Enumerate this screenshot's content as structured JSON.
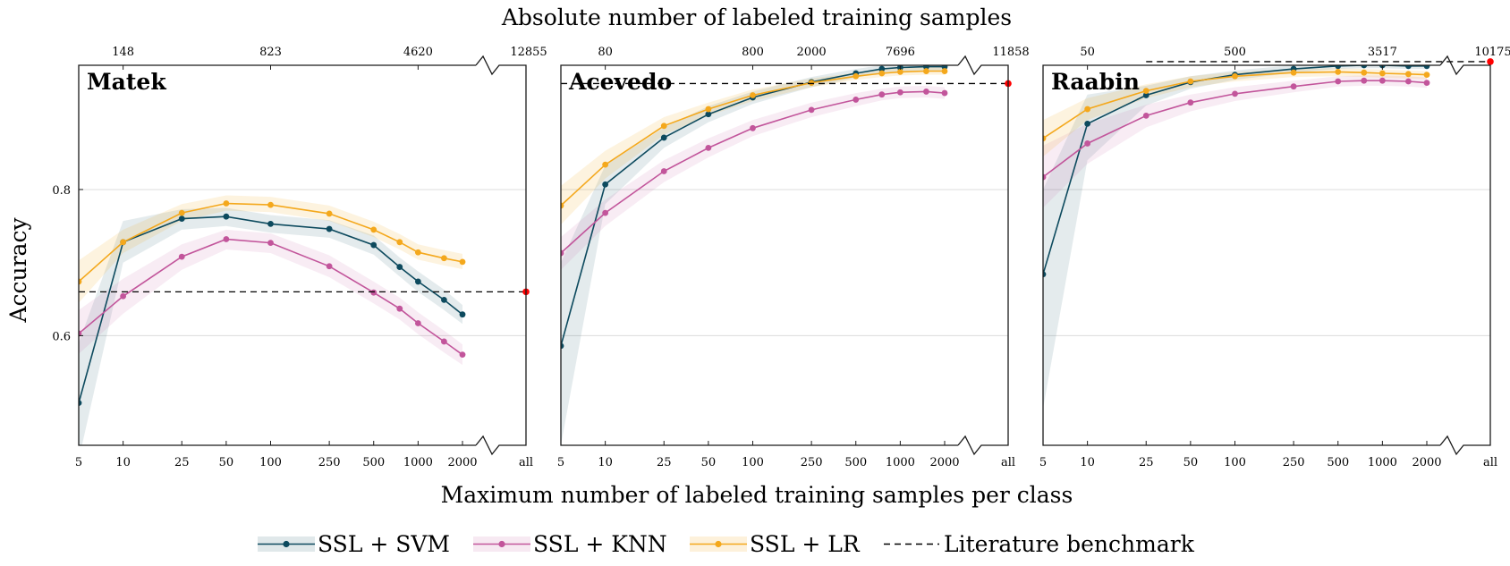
{
  "figure": {
    "top_title": "Absolute number of labeled training samples",
    "bottom_title": "Maximum number of labeled training samples per class",
    "ylabel": "Accuracy"
  },
  "legend": {
    "items": [
      {
        "label": "SSL + SVM",
        "color": "#0d4a5e",
        "style": "line-marker-band"
      },
      {
        "label": "SSL + KNN",
        "color": "#c2559b",
        "style": "line-marker-band"
      },
      {
        "label": "SSL + LR",
        "color": "#f4a81c",
        "style": "line-marker-band"
      },
      {
        "label": "Literature benchmark",
        "color": "#000000",
        "style": "dashed"
      }
    ]
  },
  "chart_data": [
    {
      "type": "line",
      "panel_title": "Matek",
      "x_scale": "log",
      "x": [
        5,
        10,
        25,
        50,
        100,
        250,
        500,
        750,
        1000,
        1500,
        2000
      ],
      "x_tick_labels": [
        "5",
        "10",
        "25",
        "50",
        "100",
        "250",
        "500",
        "1000",
        "2000",
        "all"
      ],
      "x_tick_values": [
        5,
        10,
        25,
        50,
        100,
        250,
        500,
        1000,
        2000,
        "all"
      ],
      "top_tick_labels": [
        "148",
        "823",
        "4620",
        "12855"
      ],
      "top_tick_at_x": [
        10,
        100,
        1000,
        "all"
      ],
      "ylim": [
        0.45,
        0.97
      ],
      "yticks": [
        0.6,
        0.8
      ],
      "ytick_labels": [
        "0.6",
        "0.8"
      ],
      "show_y_ticks": true,
      "grid": "horizontal",
      "series": [
        {
          "name": "SSL + SVM",
          "color": "#0d4a5e",
          "values": [
            0.508,
            0.728,
            0.76,
            0.763,
            0.753,
            0.746,
            0.724,
            0.694,
            0.674,
            0.649,
            0.629
          ],
          "band_low": [
            0.43,
            0.7,
            0.745,
            0.75,
            0.741,
            0.734,
            0.711,
            0.681,
            0.66,
            0.635,
            0.616
          ],
          "band_high": [
            0.59,
            0.757,
            0.773,
            0.775,
            0.765,
            0.758,
            0.737,
            0.707,
            0.688,
            0.663,
            0.642
          ]
        },
        {
          "name": "SSL + KNN",
          "color": "#c2559b",
          "values": [
            0.603,
            0.654,
            0.708,
            0.732,
            0.727,
            0.695,
            0.659,
            0.637,
            0.617,
            0.592,
            0.574
          ],
          "band_low": [
            0.575,
            0.63,
            0.69,
            0.718,
            0.713,
            0.68,
            0.644,
            0.622,
            0.602,
            0.577,
            0.56
          ],
          "band_high": [
            0.635,
            0.678,
            0.725,
            0.745,
            0.74,
            0.71,
            0.674,
            0.652,
            0.632,
            0.607,
            0.588
          ]
        },
        {
          "name": "SSL + LR",
          "color": "#f4a81c",
          "values": [
            0.674,
            0.728,
            0.768,
            0.781,
            0.779,
            0.767,
            0.745,
            0.728,
            0.714,
            0.706,
            0.701
          ],
          "band_low": [
            0.645,
            0.713,
            0.757,
            0.771,
            0.769,
            0.757,
            0.735,
            0.718,
            0.704,
            0.696,
            0.691
          ],
          "band_high": [
            0.703,
            0.745,
            0.78,
            0.792,
            0.79,
            0.778,
            0.756,
            0.739,
            0.725,
            0.717,
            0.712
          ]
        }
      ],
      "benchmark": {
        "name": "Literature benchmark",
        "value": 0.66,
        "from_x": 5
      }
    },
    {
      "type": "line",
      "panel_title": "Acevedo",
      "x_scale": "log",
      "x": [
        5,
        10,
        25,
        50,
        100,
        250,
        500,
        750,
        1000,
        1500,
        2000
      ],
      "x_tick_labels": [
        "5",
        "10",
        "25",
        "50",
        "100",
        "250",
        "500",
        "1000",
        "2000",
        "all"
      ],
      "x_tick_values": [
        5,
        10,
        25,
        50,
        100,
        250,
        500,
        1000,
        2000,
        "all"
      ],
      "top_tick_labels": [
        "80",
        "800",
        "2000",
        "7696",
        "11858"
      ],
      "top_tick_at_x": [
        10,
        100,
        250,
        1000,
        "all"
      ],
      "ylim": [
        0.45,
        0.97
      ],
      "yticks": [
        0.6,
        0.8
      ],
      "ytick_labels": [
        "",
        ""
      ],
      "show_y_ticks": false,
      "grid": "horizontal",
      "series": [
        {
          "name": "SSL + SVM",
          "color": "#0d4a5e",
          "values": [
            0.586,
            0.807,
            0.871,
            0.903,
            0.926,
            0.947,
            0.959,
            0.965,
            0.967,
            0.968,
            0.968
          ],
          "band_low": [
            0.45,
            0.78,
            0.857,
            0.892,
            0.917,
            0.94,
            0.953,
            0.96,
            0.962,
            0.963,
            0.963
          ],
          "band_high": [
            0.7,
            0.833,
            0.885,
            0.914,
            0.934,
            0.954,
            0.965,
            0.97,
            0.972,
            0.973,
            0.973
          ]
        },
        {
          "name": "SSL + KNN",
          "color": "#c2559b",
          "values": [
            0.713,
            0.768,
            0.825,
            0.857,
            0.884,
            0.909,
            0.923,
            0.93,
            0.933,
            0.934,
            0.932
          ],
          "band_low": [
            0.69,
            0.75,
            0.81,
            0.844,
            0.873,
            0.899,
            0.914,
            0.922,
            0.925,
            0.926,
            0.924
          ],
          "band_high": [
            0.735,
            0.786,
            0.84,
            0.87,
            0.895,
            0.919,
            0.932,
            0.938,
            0.941,
            0.942,
            0.94
          ]
        },
        {
          "name": "SSL + LR",
          "color": "#f4a81c",
          "values": [
            0.778,
            0.834,
            0.887,
            0.91,
            0.929,
            0.946,
            0.955,
            0.959,
            0.961,
            0.962,
            0.962
          ],
          "band_low": [
            0.752,
            0.815,
            0.875,
            0.901,
            0.921,
            0.94,
            0.95,
            0.954,
            0.956,
            0.957,
            0.957
          ],
          "band_high": [
            0.805,
            0.853,
            0.899,
            0.919,
            0.937,
            0.952,
            0.96,
            0.964,
            0.966,
            0.967,
            0.967
          ]
        }
      ],
      "benchmark": {
        "name": "Literature benchmark",
        "value": 0.945,
        "from_x": 5
      }
    },
    {
      "type": "line",
      "panel_title": "Raabin",
      "x_scale": "log",
      "x": [
        5,
        10,
        25,
        50,
        100,
        250,
        500,
        750,
        1000,
        1500,
        2000
      ],
      "x_tick_labels": [
        "5",
        "10",
        "25",
        "50",
        "100",
        "250",
        "500",
        "1000",
        "2000",
        "all"
      ],
      "x_tick_values": [
        5,
        10,
        25,
        50,
        100,
        250,
        500,
        1000,
        2000,
        "all"
      ],
      "top_tick_labels": [
        "50",
        "500",
        "3517",
        "10175"
      ],
      "top_tick_at_x": [
        10,
        100,
        1000,
        "all"
      ],
      "ylim": [
        0.45,
        0.97
      ],
      "yticks": [
        0.6,
        0.8
      ],
      "ytick_labels": [
        "",
        ""
      ],
      "show_y_ticks": false,
      "grid": "horizontal",
      "series": [
        {
          "name": "SSL + SVM",
          "color": "#0d4a5e",
          "values": [
            0.684,
            0.89,
            0.929,
            0.947,
            0.957,
            0.965,
            0.969,
            0.97,
            0.97,
            0.969,
            0.969
          ],
          "band_low": [
            0.5,
            0.84,
            0.915,
            0.938,
            0.95,
            0.96,
            0.965,
            0.966,
            0.966,
            0.965,
            0.965
          ],
          "band_high": [
            0.8,
            0.93,
            0.942,
            0.955,
            0.963,
            0.97,
            0.973,
            0.974,
            0.974,
            0.973,
            0.973
          ]
        },
        {
          "name": "SSL + KNN",
          "color": "#c2559b",
          "values": [
            0.817,
            0.863,
            0.901,
            0.919,
            0.931,
            0.941,
            0.948,
            0.949,
            0.949,
            0.948,
            0.946
          ],
          "band_low": [
            0.775,
            0.835,
            0.885,
            0.907,
            0.921,
            0.933,
            0.941,
            0.942,
            0.942,
            0.941,
            0.939
          ],
          "band_high": [
            0.86,
            0.89,
            0.916,
            0.93,
            0.94,
            0.949,
            0.955,
            0.956,
            0.956,
            0.955,
            0.953
          ]
        },
        {
          "name": "SSL + LR",
          "color": "#f4a81c",
          "values": [
            0.87,
            0.91,
            0.935,
            0.948,
            0.955,
            0.96,
            0.961,
            0.96,
            0.959,
            0.958,
            0.957
          ],
          "band_low": [
            0.845,
            0.895,
            0.925,
            0.94,
            0.948,
            0.954,
            0.955,
            0.954,
            0.953,
            0.952,
            0.951
          ],
          "band_high": [
            0.895,
            0.925,
            0.944,
            0.955,
            0.961,
            0.965,
            0.966,
            0.965,
            0.964,
            0.963,
            0.962
          ]
        }
      ],
      "benchmark": {
        "name": "Literature benchmark",
        "value": 0.975,
        "from_x": 25
      }
    }
  ]
}
